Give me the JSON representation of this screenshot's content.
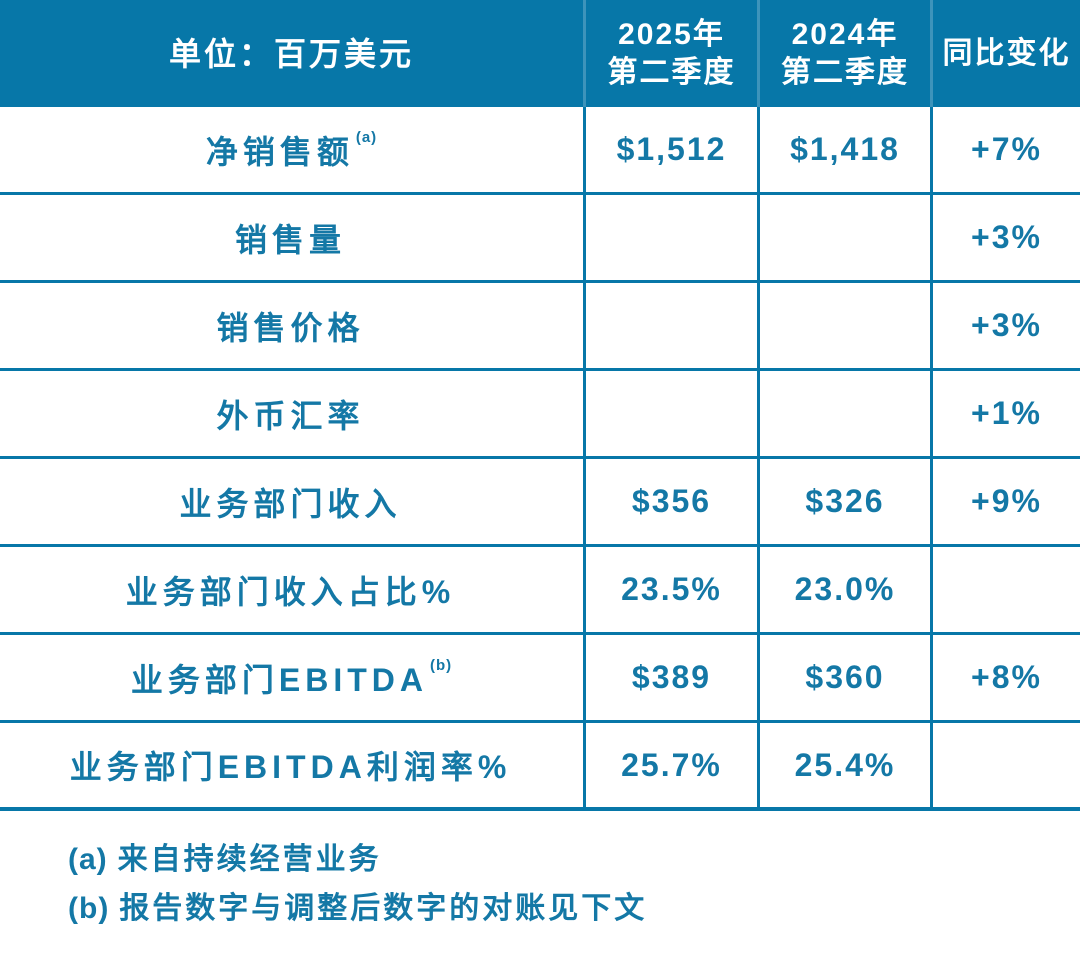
{
  "colors": {
    "accent_teal": "#0777a8",
    "text_teal": "#1478a6",
    "header_text": "#ffffff",
    "background": "#ffffff"
  },
  "table": {
    "header": {
      "unit_label": "单位：百万美元",
      "q2_2025_line1": "2025年",
      "q2_2025_line2": "第二季度",
      "q2_2024_line1": "2024年",
      "q2_2024_line2": "第二季度",
      "yoy_label": "同比变化"
    },
    "rows": [
      {
        "label": "净销售额",
        "sup": "(a)",
        "q2_2025": "$1,512",
        "q2_2024": "$1,418",
        "change": "+7%"
      },
      {
        "label": "销售量",
        "sup": "",
        "q2_2025": "",
        "q2_2024": "",
        "change": "+3%"
      },
      {
        "label": "销售价格",
        "sup": "",
        "q2_2025": "",
        "q2_2024": "",
        "change": "+3%"
      },
      {
        "label": "外币汇率",
        "sup": "",
        "q2_2025": "",
        "q2_2024": "",
        "change": "+1%"
      },
      {
        "label": "业务部门收入",
        "sup": "",
        "q2_2025": "$356",
        "q2_2024": "$326",
        "change": "+9%"
      },
      {
        "label": "业务部门收入占比%",
        "sup": "",
        "q2_2025": "23.5%",
        "q2_2024": "23.0%",
        "change": ""
      },
      {
        "label": "业务部门EBITDA",
        "sup": "(b)",
        "q2_2025": "$389",
        "q2_2024": "$360",
        "change": "+8%"
      },
      {
        "label": "业务部门EBITDA利润率%",
        "sup": "",
        "q2_2025": "25.7%",
        "q2_2024": "25.4%",
        "change": ""
      }
    ]
  },
  "footnotes": [
    {
      "marker": "(a)",
      "text": "来自持续经营业务"
    },
    {
      "marker": "(b)",
      "text": "报告数字与调整后数字的对账见下文"
    }
  ],
  "chart_data": {
    "type": "table",
    "title": "单位：百万美元",
    "columns": [
      "单位：百万美元",
      "2025年第二季度",
      "2024年第二季度",
      "同比变化"
    ],
    "rows": [
      [
        "净销售额(a)",
        "$1,512",
        "$1,418",
        "+7%"
      ],
      [
        "销售量",
        "",
        "",
        "+3%"
      ],
      [
        "销售价格",
        "",
        "",
        "+3%"
      ],
      [
        "外币汇率",
        "",
        "",
        "+1%"
      ],
      [
        "业务部门收入",
        "$356",
        "$326",
        "+9%"
      ],
      [
        "业务部门收入占比%",
        "23.5%",
        "23.0%",
        ""
      ],
      [
        "业务部门EBITDA(b)",
        "$389",
        "$360",
        "+8%"
      ],
      [
        "业务部门EBITDA利润率%",
        "25.7%",
        "25.4%",
        ""
      ]
    ],
    "footnotes": [
      "(a) 来自持续经营业务",
      "(b) 报告数字与调整后数字的对账见下文"
    ],
    "layout": {
      "header_background": "#0777a8",
      "grid": "on",
      "text_color": "#1478a6"
    }
  }
}
